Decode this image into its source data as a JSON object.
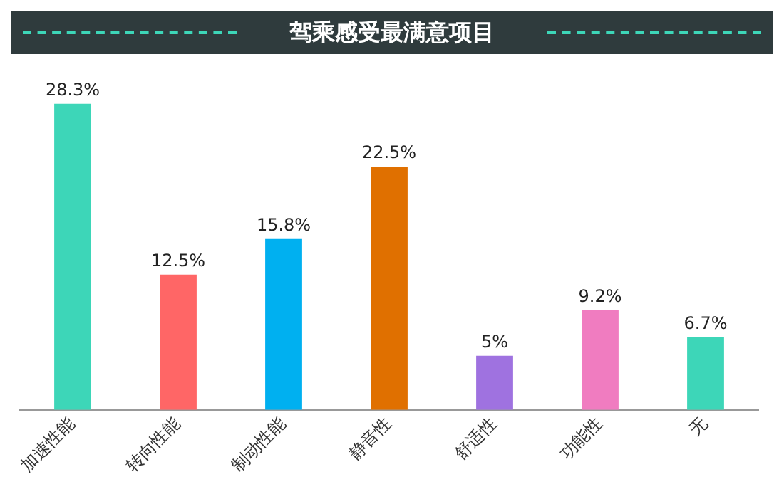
{
  "chart_data": {
    "type": "bar",
    "title": "驾乘感受最满意项目",
    "categories": [
      "加速性能",
      "转向性能",
      "制动性能",
      "静音性",
      "舒适性",
      "功能性",
      "无"
    ],
    "values": [
      28.3,
      12.5,
      15.8,
      22.5,
      5,
      9.2,
      6.7
    ],
    "colors": [
      "#3dd6b8",
      "#ff6666",
      "#00b0f0",
      "#e07000",
      "#9f72e0",
      "#f07cc0",
      "#3dd6b8"
    ],
    "value_labels": [
      "28.3%",
      "12.5%",
      "15.8%",
      "22.5%",
      "5%",
      "9.2%",
      "6.7%"
    ],
    "grid": false,
    "legend": false
  }
}
